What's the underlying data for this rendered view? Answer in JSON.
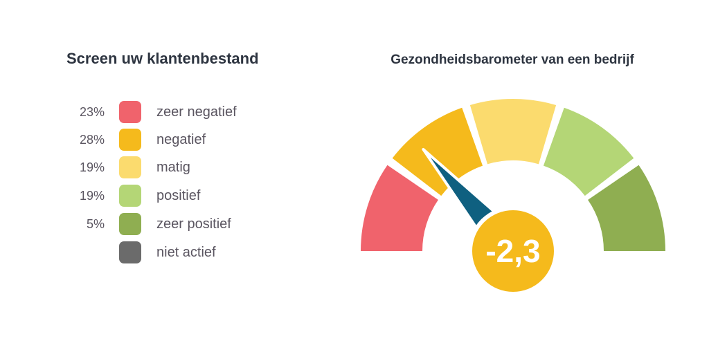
{
  "left_title": "Screen uw klantenbestand",
  "gauge_title": "Gezondheidsbarometer van een bedrijf",
  "legend": [
    {
      "pct": "23%",
      "label": "zeer negatief",
      "color": "#f0636c"
    },
    {
      "pct": "28%",
      "label": "negatief",
      "color": "#f5ba1c"
    },
    {
      "pct": "19%",
      "label": "matig",
      "color": "#fbdb6e"
    },
    {
      "pct": "19%",
      "label": "positief",
      "color": "#b4d676"
    },
    {
      "pct": "5%",
      "label": "zeer positief",
      "color": "#8fae51"
    },
    {
      "pct": "",
      "label": "niet actief",
      "color": "#6b6b6b"
    }
  ],
  "chart_data": {
    "type": "gauge",
    "title": "Gezondheidsbarometer van een bedrijf",
    "value_label": "-2,3",
    "value": -2.3,
    "segments": [
      {
        "label": "zeer negatief",
        "color": "#f0636c"
      },
      {
        "label": "negatief",
        "color": "#f5ba1c"
      },
      {
        "label": "matig",
        "color": "#fbdb6e"
      },
      {
        "label": "positief",
        "color": "#b4d676"
      },
      {
        "label": "zeer positief",
        "color": "#8fae51"
      }
    ],
    "needle_color": "#0f6080",
    "hub_color": "#f5ba1c"
  }
}
